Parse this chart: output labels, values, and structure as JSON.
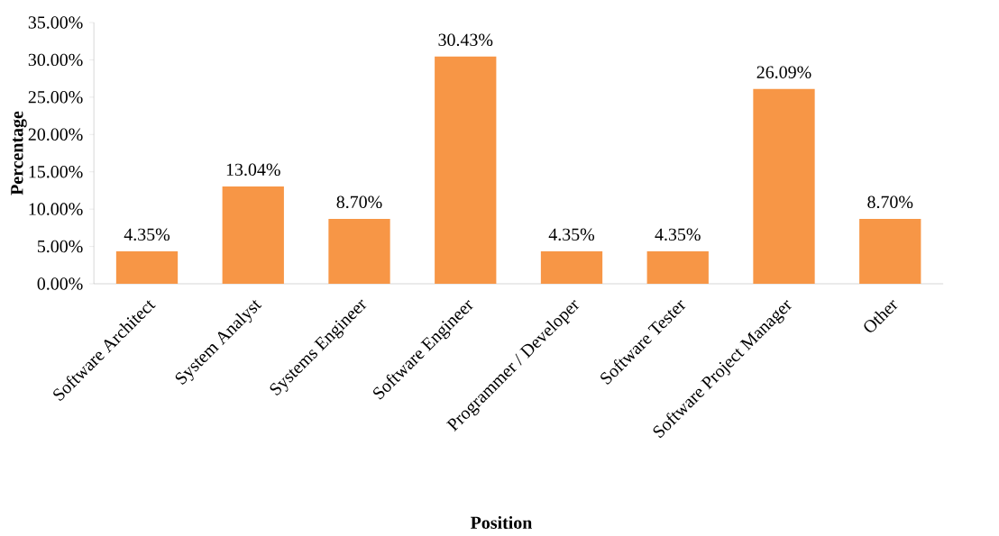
{
  "chart_data": {
    "type": "bar",
    "xlabel": "Position",
    "ylabel": "Percentage",
    "color": "#f79646",
    "categories": [
      "Software Architect",
      "System Analyst",
      "Systems Engineer",
      "Software Engineer",
      "Programmer / Developer",
      "Software Tester",
      "Software Project Manager",
      "Other"
    ],
    "values": [
      4.35,
      13.04,
      8.7,
      30.43,
      4.35,
      4.35,
      26.09,
      8.7
    ],
    "value_labels": [
      "4.35%",
      "13.04%",
      "8.70%",
      "30.43%",
      "4.35%",
      "4.35%",
      "26.09%",
      "8.70%"
    ],
    "ylim": [
      0,
      35
    ],
    "yticks": [
      {
        "value": 0,
        "label": "0.00%"
      },
      {
        "value": 5,
        "label": "5.00%"
      },
      {
        "value": 10,
        "label": "10.00%"
      },
      {
        "value": 15,
        "label": "15.00%"
      },
      {
        "value": 20,
        "label": "20.00%"
      },
      {
        "value": 25,
        "label": "25.00%"
      },
      {
        "value": 30,
        "label": "30.00%"
      },
      {
        "value": 35,
        "label": "35.00%"
      }
    ]
  }
}
